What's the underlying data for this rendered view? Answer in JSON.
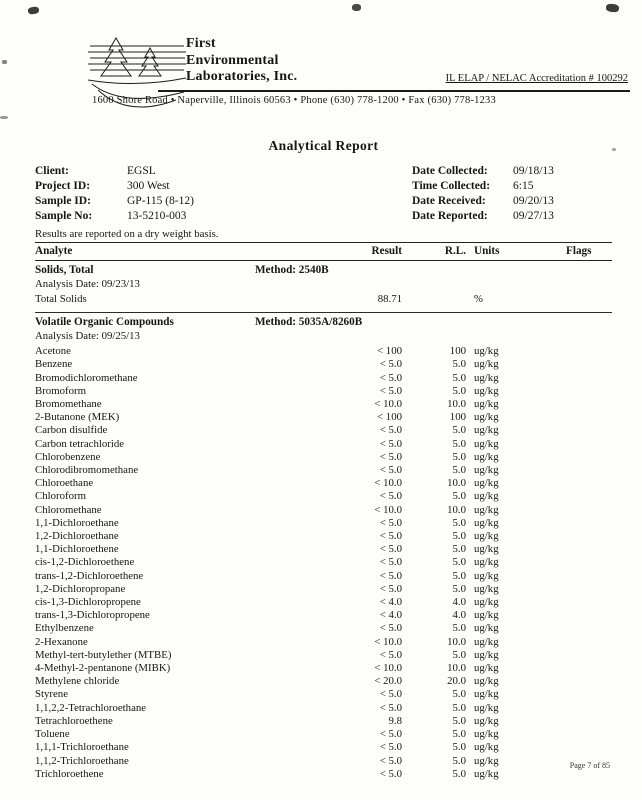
{
  "header": {
    "company_lines": [
      "First",
      "Environmental",
      "Laboratories, Inc."
    ],
    "accreditation": "IL ELAP / NELAC Accreditation # 100292",
    "address": "1600 Shore Road • Naperville, Illinois 60563 • Phone (630) 778-1200 • Fax (630) 778-1233"
  },
  "title": "Analytical Report",
  "info": {
    "left": [
      {
        "label": "Client:",
        "value": "EGSL"
      },
      {
        "label": "Project ID:",
        "value": "300 West"
      },
      {
        "label": "Sample ID:",
        "value": "GP-115  (8-12)"
      },
      {
        "label": "Sample No:",
        "value": "13-5210-003"
      }
    ],
    "right": [
      {
        "label": "Date Collected:",
        "value": "09/18/13"
      },
      {
        "label": "Time Collected:",
        "value": "6:15"
      },
      {
        "label": "Date Received:",
        "value": "09/20/13"
      },
      {
        "label": "Date Reported:",
        "value": "09/27/13"
      }
    ],
    "note": "Results are reported on a dry weight basis."
  },
  "table": {
    "headers": [
      "Analyte",
      "Result",
      "R.L.",
      "Units",
      "Flags"
    ],
    "sections": [
      {
        "name": "Solids, Total",
        "method": "Method:  2540B",
        "analysis_date": "Analysis Date:  09/23/13",
        "rows": [
          [
            "Total Solids",
            "88.71",
            "",
            "%",
            ""
          ]
        ]
      },
      {
        "name": "Volatile Organic Compounds",
        "method": "Method:  5035A/8260B",
        "analysis_date": "Analysis Date:  09/25/13",
        "rows": [
          [
            "Acetone",
            "< 100",
            "100",
            "ug/kg",
            ""
          ],
          [
            "Benzene",
            "< 5.0",
            "5.0",
            "ug/kg",
            ""
          ],
          [
            "Bromodichloromethane",
            "< 5.0",
            "5.0",
            "ug/kg",
            ""
          ],
          [
            "Bromoform",
            "< 5.0",
            "5.0",
            "ug/kg",
            ""
          ],
          [
            "Bromomethane",
            "< 10.0",
            "10.0",
            "ug/kg",
            ""
          ],
          [
            "2-Butanone (MEK)",
            "< 100",
            "100",
            "ug/kg",
            ""
          ],
          [
            "Carbon disulfide",
            "< 5.0",
            "5.0",
            "ug/kg",
            ""
          ],
          [
            "Carbon tetrachloride",
            "< 5.0",
            "5.0",
            "ug/kg",
            ""
          ],
          [
            "Chlorobenzene",
            "< 5.0",
            "5.0",
            "ug/kg",
            ""
          ],
          [
            "Chlorodibromomethane",
            "< 5.0",
            "5.0",
            "ug/kg",
            ""
          ],
          [
            "Chloroethane",
            "< 10.0",
            "10.0",
            "ug/kg",
            ""
          ],
          [
            "Chloroform",
            "< 5.0",
            "5.0",
            "ug/kg",
            ""
          ],
          [
            "Chloromethane",
            "< 10.0",
            "10.0",
            "ug/kg",
            ""
          ],
          [
            "1,1-Dichloroethane",
            "< 5.0",
            "5.0",
            "ug/kg",
            ""
          ],
          [
            "1,2-Dichloroethane",
            "< 5.0",
            "5.0",
            "ug/kg",
            ""
          ],
          [
            "1,1-Dichloroethene",
            "< 5.0",
            "5.0",
            "ug/kg",
            ""
          ],
          [
            "cis-1,2-Dichloroethene",
            "< 5.0",
            "5.0",
            "ug/kg",
            ""
          ],
          [
            "trans-1,2-Dichloroethene",
            "< 5.0",
            "5.0",
            "ug/kg",
            ""
          ],
          [
            "1,2-Dichloropropane",
            "< 5.0",
            "5.0",
            "ug/kg",
            ""
          ],
          [
            "cis-1,3-Dichloropropene",
            "< 4.0",
            "4.0",
            "ug/kg",
            ""
          ],
          [
            "trans-1,3-Dichloropropene",
            "< 4.0",
            "4.0",
            "ug/kg",
            ""
          ],
          [
            "Ethylbenzene",
            "< 5.0",
            "5.0",
            "ug/kg",
            ""
          ],
          [
            "2-Hexanone",
            "< 10.0",
            "10.0",
            "ug/kg",
            ""
          ],
          [
            "Methyl-tert-butylether (MTBE)",
            "< 5.0",
            "5.0",
            "ug/kg",
            ""
          ],
          [
            "4-Methyl-2-pentanone (MIBK)",
            "< 10.0",
            "10.0",
            "ug/kg",
            ""
          ],
          [
            "Methylene chloride",
            "< 20.0",
            "20.0",
            "ug/kg",
            ""
          ],
          [
            "Styrene",
            "< 5.0",
            "5.0",
            "ug/kg",
            ""
          ],
          [
            "1,1,2,2-Tetrachloroethane",
            "< 5.0",
            "5.0",
            "ug/kg",
            ""
          ],
          [
            "Tetrachloroethene",
            "9.8",
            "5.0",
            "ug/kg",
            ""
          ],
          [
            "Toluene",
            "< 5.0",
            "5.0",
            "ug/kg",
            ""
          ],
          [
            "1,1,1-Trichloroethane",
            "< 5.0",
            "5.0",
            "ug/kg",
            ""
          ],
          [
            "1,1,2-Trichloroethane",
            "< 5.0",
            "5.0",
            "ug/kg",
            ""
          ],
          [
            "Trichloroethene",
            "< 5.0",
            "5.0",
            "ug/kg",
            ""
          ]
        ]
      }
    ]
  },
  "footer": {
    "page": "Page 7 of 85"
  }
}
